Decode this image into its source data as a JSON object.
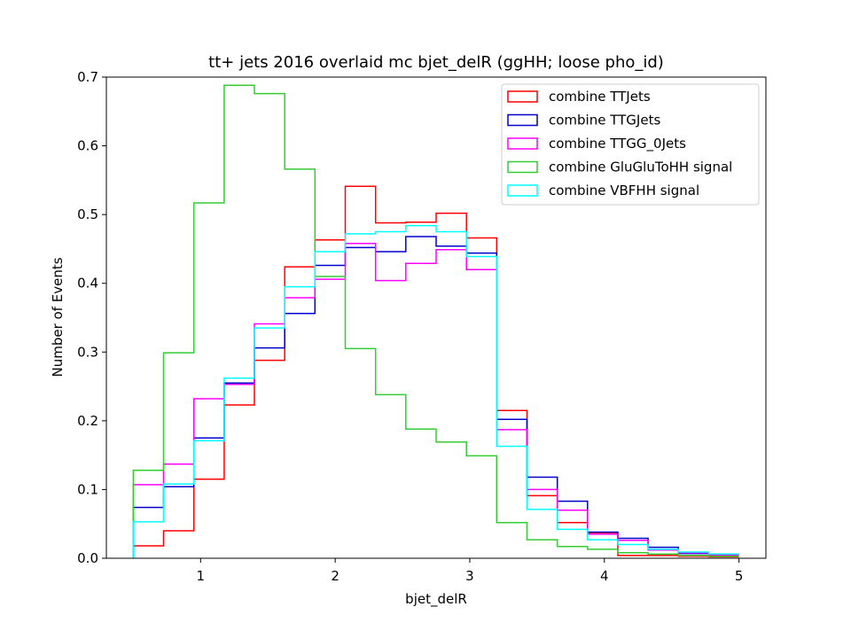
{
  "chart_data": {
    "type": "line",
    "title": "tt+ jets 2016 overlaid mc bjet_delR (ggHH; loose pho_id)",
    "xlabel": "bjet_delR",
    "ylabel": "Number of Events",
    "xlim": [
      0.3,
      5.2
    ],
    "ylim": [
      0.0,
      0.7
    ],
    "x_ticks": [
      1,
      2,
      3,
      4,
      5
    ],
    "y_ticks": [
      0.0,
      0.1,
      0.2,
      0.3,
      0.4,
      0.5,
      0.6,
      0.7
    ],
    "grid": false,
    "legend_position": "top-right",
    "bin_edges": [
      0.5,
      0.725,
      0.95,
      1.175,
      1.4,
      1.625,
      1.85,
      2.075,
      2.3,
      2.525,
      2.75,
      2.975,
      3.2,
      3.425,
      3.65,
      3.875,
      4.1,
      4.325,
      4.55,
      4.775,
      5.0
    ],
    "series": [
      {
        "name": "combine TTJets",
        "color": "#ff0000",
        "values": [
          0.018,
          0.04,
          0.115,
          0.223,
          0.288,
          0.424,
          0.463,
          0.541,
          0.488,
          0.489,
          0.502,
          0.466,
          0.215,
          0.091,
          0.052,
          0.037,
          0.004,
          0.004,
          0.003,
          0.002
        ]
      },
      {
        "name": "combine TTGJets",
        "color": "#0000cc",
        "values": [
          0.074,
          0.104,
          0.175,
          0.255,
          0.306,
          0.356,
          0.426,
          0.452,
          0.446,
          0.468,
          0.454,
          0.444,
          0.202,
          0.118,
          0.083,
          0.038,
          0.029,
          0.016,
          0.007,
          0.005
        ]
      },
      {
        "name": "combine TTGG_0Jets",
        "color": "#ff00ff",
        "values": [
          0.107,
          0.137,
          0.232,
          0.253,
          0.341,
          0.379,
          0.406,
          0.458,
          0.404,
          0.429,
          0.449,
          0.42,
          0.187,
          0.1,
          0.07,
          0.035,
          0.026,
          0.012,
          0.008,
          0.005
        ]
      },
      {
        "name": "combine GluGluToHH signal",
        "color": "#33cc33",
        "values": [
          0.128,
          0.299,
          0.517,
          0.688,
          0.676,
          0.566,
          0.41,
          0.305,
          0.238,
          0.188,
          0.169,
          0.149,
          0.052,
          0.027,
          0.017,
          0.013,
          0.008,
          0.006,
          0.004,
          0.003
        ]
      },
      {
        "name": "combine VBFHH signal",
        "color": "#00ffff",
        "values": [
          0.053,
          0.108,
          0.171,
          0.262,
          0.335,
          0.395,
          0.446,
          0.472,
          0.475,
          0.484,
          0.475,
          0.439,
          0.163,
          0.071,
          0.042,
          0.027,
          0.02,
          0.013,
          0.009,
          0.006
        ]
      }
    ]
  }
}
